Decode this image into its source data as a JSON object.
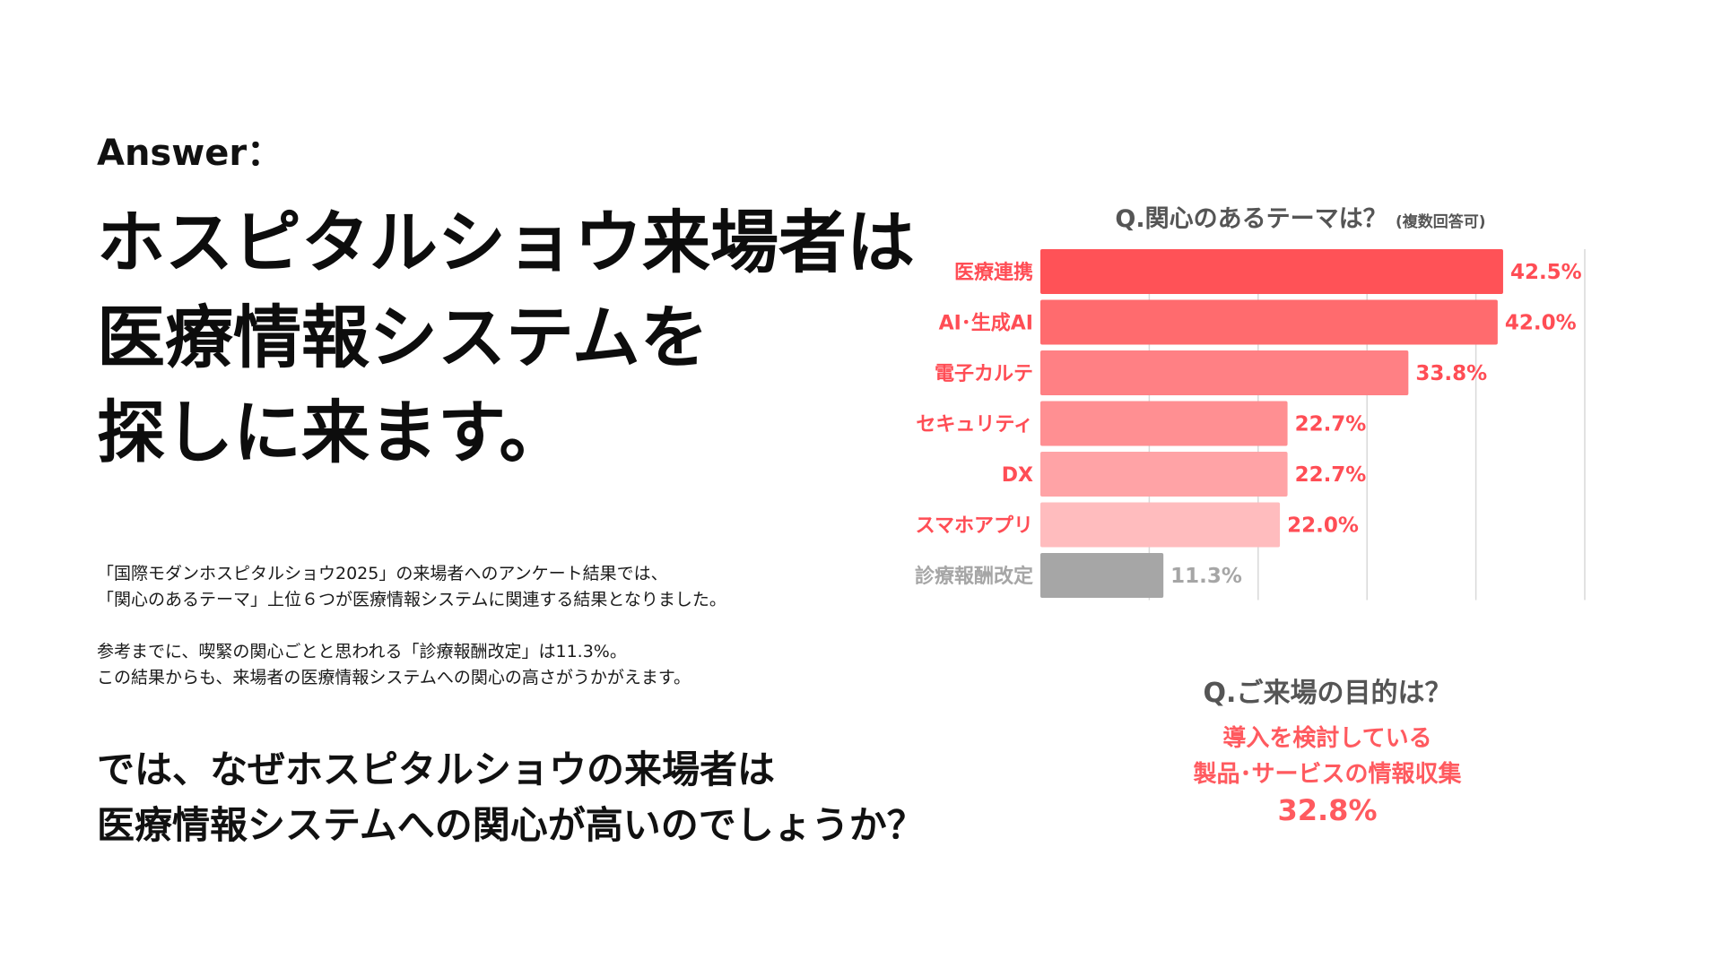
{
  "answer_label": "Answer：",
  "headline": [
    "ホスピタルショウ来場者は",
    "医療情報システムを",
    "探しに来ます。"
  ],
  "body_paragraphs": [
    [
      "「国際モダンホスピタルショウ2025」の来場者へのアンケート結果では、",
      "「関心のあるテーマ」上位６つが医療情報システムに関連する結果となりました。"
    ],
    [
      "参考までに、喫緊の関心ごとと思われる「診療報酬改定」は11.3%。",
      "この結果からも、来場者の医療情報システムへの関心の高さがうかがえます。"
    ]
  ],
  "closing": [
    "では、なぜホスピタルショウの来場者は",
    "医療情報システムへの関心が高いのでしょうか？"
  ],
  "chart_title": "Q.関心のあるテーマは？",
  "chart_title_note": "(複数回答可)",
  "chart_data": {
    "type": "bar",
    "orientation": "horizontal",
    "categories": [
      "医療連携",
      "AI･生成AI",
      "電子カルテ",
      "セキュリティ",
      "DX",
      "スマホアプリ",
      "診療報酬改定"
    ],
    "values": [
      42.5,
      42.0,
      33.8,
      22.7,
      22.7,
      22.0,
      11.3
    ],
    "value_labels": [
      "42.5%",
      "42.0%",
      "33.8%",
      "22.7%",
      "22.7%",
      "22.0%",
      "11.3%"
    ],
    "unit": "%",
    "xlim": [
      0,
      50
    ],
    "gridlines": [
      10,
      20,
      30,
      40,
      50
    ],
    "bar_colors": [
      "#ff5257",
      "#ff6b6e",
      "#ff8084",
      "#ff8f92",
      "#ffa3a6",
      "#ffbcbe",
      "#a6a6a6"
    ],
    "label_colors": [
      "#ff4d55",
      "#ff4d55",
      "#ff4d55",
      "#ff4d55",
      "#ff4d55",
      "#ff4d55",
      "#a6a6a6"
    ],
    "grid": true,
    "legend": "none"
  },
  "purpose": {
    "question": "Q.ご来場の目的は？",
    "answer_lines": [
      "導入を検討している",
      "製品･サービスの情報収集"
    ],
    "value": "32.8%"
  },
  "colors": {
    "accent": "#ff5a5f",
    "muted": "#a6a6a6",
    "title_gray": "#555555"
  }
}
